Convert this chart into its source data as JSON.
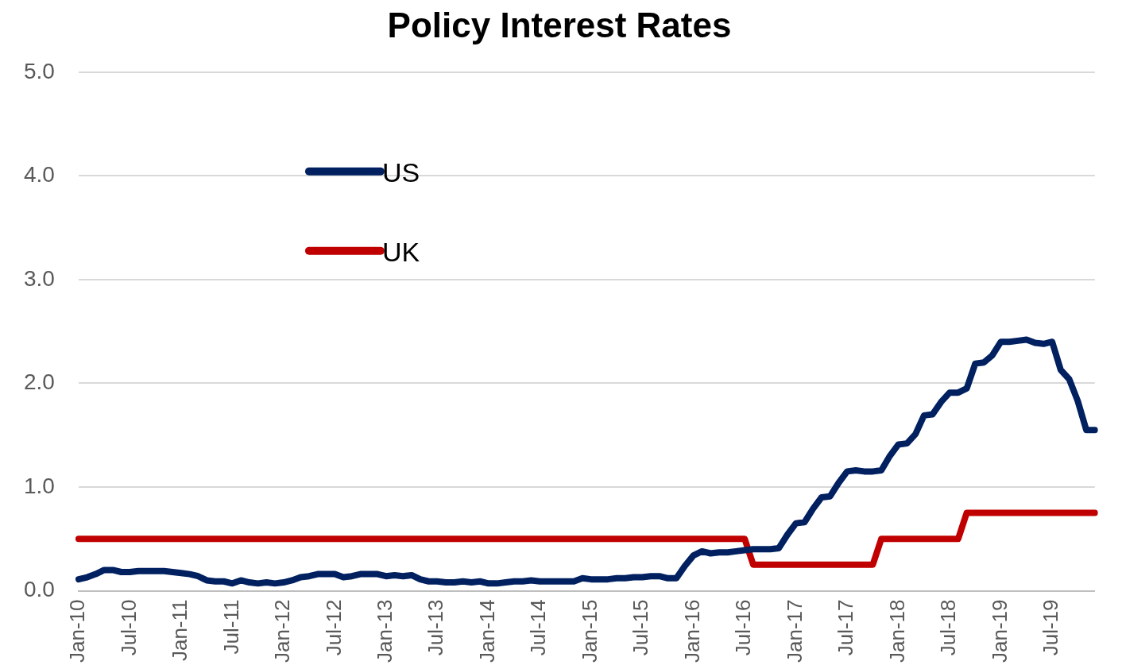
{
  "chart_data": {
    "type": "line",
    "title": "Policy Interest Rates",
    "categories": [
      "Jan-10",
      null,
      null,
      null,
      null,
      null,
      "Jul-10",
      null,
      null,
      null,
      null,
      null,
      "Jan-11",
      null,
      null,
      null,
      null,
      null,
      "Jul-11",
      null,
      null,
      null,
      null,
      null,
      "Jan-12",
      null,
      null,
      null,
      null,
      null,
      "Jul-12",
      null,
      null,
      null,
      null,
      null,
      "Jan-13",
      null,
      null,
      null,
      null,
      null,
      "Jul-13",
      null,
      null,
      null,
      null,
      null,
      "Jan-14",
      null,
      null,
      null,
      null,
      null,
      "Jul-14",
      null,
      null,
      null,
      null,
      null,
      "Jan-15",
      null,
      null,
      null,
      null,
      null,
      "Jul-15",
      null,
      null,
      null,
      null,
      null,
      "Jan-16",
      null,
      null,
      null,
      null,
      null,
      "Jul-16",
      null,
      null,
      null,
      null,
      null,
      "Jan-17",
      null,
      null,
      null,
      null,
      null,
      "Jul-17",
      null,
      null,
      null,
      null,
      null,
      "Jan-18",
      null,
      null,
      null,
      null,
      null,
      "Jul-18",
      null,
      null,
      null,
      null,
      null,
      "Jan-19",
      null,
      null,
      null,
      null,
      null,
      "Jul-19",
      null,
      null,
      null,
      null,
      null
    ],
    "series": [
      {
        "name": "US",
        "color": "#002060",
        "values": [
          0.11,
          0.13,
          0.16,
          0.2,
          0.2,
          0.18,
          0.18,
          0.19,
          0.19,
          0.19,
          0.19,
          0.18,
          0.17,
          0.16,
          0.14,
          0.1,
          0.09,
          0.09,
          0.07,
          0.1,
          0.08,
          0.07,
          0.08,
          0.07,
          0.08,
          0.1,
          0.13,
          0.14,
          0.16,
          0.16,
          0.16,
          0.13,
          0.14,
          0.16,
          0.16,
          0.16,
          0.14,
          0.15,
          0.14,
          0.15,
          0.11,
          0.09,
          0.09,
          0.08,
          0.08,
          0.09,
          0.08,
          0.09,
          0.07,
          0.07,
          0.08,
          0.09,
          0.09,
          0.1,
          0.09,
          0.09,
          0.09,
          0.09,
          0.09,
          0.12,
          0.11,
          0.11,
          0.11,
          0.12,
          0.12,
          0.13,
          0.13,
          0.14,
          0.14,
          0.12,
          0.12,
          0.24,
          0.34,
          0.38,
          0.36,
          0.37,
          0.37,
          0.38,
          0.39,
          0.4,
          0.4,
          0.4,
          0.41,
          0.54,
          0.65,
          0.66,
          0.79,
          0.9,
          0.91,
          1.04,
          1.15,
          1.16,
          1.15,
          1.15,
          1.16,
          1.3,
          1.41,
          1.42,
          1.51,
          1.69,
          1.7,
          1.82,
          1.91,
          1.91,
          1.95,
          2.19,
          2.2,
          2.27,
          2.4,
          2.4,
          2.41,
          2.42,
          2.39,
          2.38,
          2.4,
          2.13,
          2.04,
          1.83,
          1.55,
          1.55
        ]
      },
      {
        "name": "UK",
        "color": "#c00000",
        "values": [
          0.5,
          0.5,
          0.5,
          0.5,
          0.5,
          0.5,
          0.5,
          0.5,
          0.5,
          0.5,
          0.5,
          0.5,
          0.5,
          0.5,
          0.5,
          0.5,
          0.5,
          0.5,
          0.5,
          0.5,
          0.5,
          0.5,
          0.5,
          0.5,
          0.5,
          0.5,
          0.5,
          0.5,
          0.5,
          0.5,
          0.5,
          0.5,
          0.5,
          0.5,
          0.5,
          0.5,
          0.5,
          0.5,
          0.5,
          0.5,
          0.5,
          0.5,
          0.5,
          0.5,
          0.5,
          0.5,
          0.5,
          0.5,
          0.5,
          0.5,
          0.5,
          0.5,
          0.5,
          0.5,
          0.5,
          0.5,
          0.5,
          0.5,
          0.5,
          0.5,
          0.5,
          0.5,
          0.5,
          0.5,
          0.5,
          0.5,
          0.5,
          0.5,
          0.5,
          0.5,
          0.5,
          0.5,
          0.5,
          0.5,
          0.5,
          0.5,
          0.5,
          0.5,
          0.5,
          0.25,
          0.25,
          0.25,
          0.25,
          0.25,
          0.25,
          0.25,
          0.25,
          0.25,
          0.25,
          0.25,
          0.25,
          0.25,
          0.25,
          0.25,
          0.5,
          0.5,
          0.5,
          0.5,
          0.5,
          0.5,
          0.5,
          0.5,
          0.5,
          0.5,
          0.75,
          0.75,
          0.75,
          0.75,
          0.75,
          0.75,
          0.75,
          0.75,
          0.75,
          0.75,
          0.75,
          0.75,
          0.75,
          0.75,
          0.75,
          0.75
        ]
      }
    ],
    "ylim": [
      0,
      5
    ],
    "yticks": [
      {
        "value": 0,
        "label": "0.0"
      },
      {
        "value": 1,
        "label": "1.0"
      },
      {
        "value": 2,
        "label": "2.0"
      },
      {
        "value": 3,
        "label": "3.0"
      },
      {
        "value": 4,
        "label": "4.0"
      },
      {
        "value": 5,
        "label": "5.0"
      }
    ],
    "grid": "y",
    "legend": "top left",
    "marker": "none",
    "line_style": "solid"
  }
}
